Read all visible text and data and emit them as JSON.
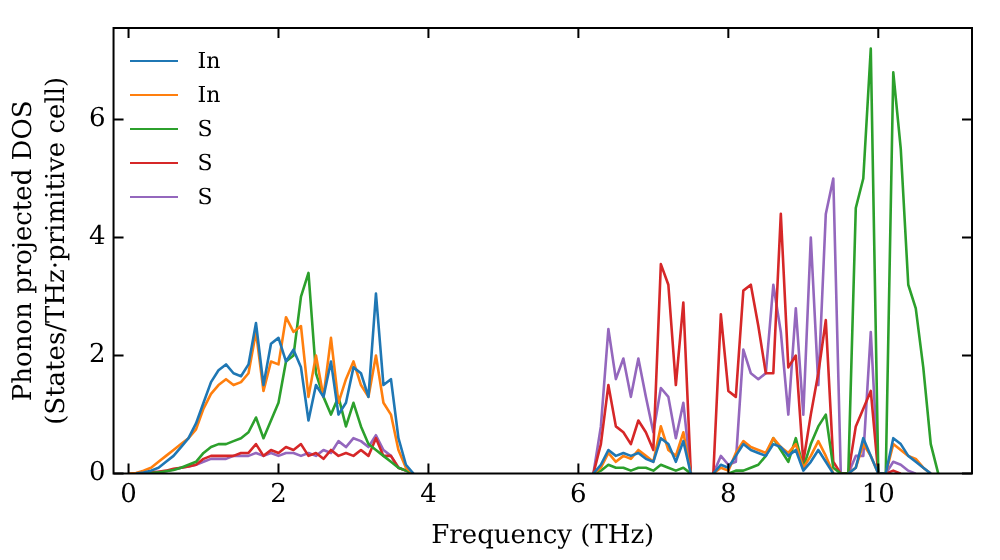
{
  "chart_data": {
    "type": "line",
    "xlabel": "Frequency (THz)",
    "ylabel": "Phonon projected DOS\n(States/THz·primitive cell)",
    "x": [
      0,
      0.1,
      0.2,
      0.3,
      0.4,
      0.5,
      0.6,
      0.7,
      0.8,
      0.9,
      1,
      1.1,
      1.2,
      1.3,
      1.4,
      1.5,
      1.6,
      1.7,
      1.8,
      1.9,
      2,
      2.1,
      2.2,
      2.3,
      2.4,
      2.5,
      2.6,
      2.7,
      2.8,
      2.9,
      3,
      3.1,
      3.2,
      3.3,
      3.4,
      3.5,
      3.6,
      3.7,
      3.8,
      3.9,
      4,
      4.1,
      4.2,
      4.3,
      4.4,
      4.5,
      4.6,
      4.7,
      4.8,
      4.9,
      5,
      5.1,
      5.2,
      5.3,
      5.4,
      5.5,
      5.6,
      5.7,
      5.8,
      5.9,
      6,
      6.1,
      6.2,
      6.3,
      6.4,
      6.5,
      6.6,
      6.7,
      6.8,
      6.9,
      7,
      7.1,
      7.2,
      7.3,
      7.4,
      7.5,
      7.6,
      7.7,
      7.8,
      7.9,
      8,
      8.1,
      8.2,
      8.3,
      8.4,
      8.5,
      8.6,
      8.7,
      8.8,
      8.9,
      9,
      9.1,
      9.2,
      9.3,
      9.4,
      9.5,
      9.6,
      9.7,
      9.8,
      9.9,
      10,
      10.1,
      10.2,
      10.3,
      10.4,
      10.5,
      10.6,
      10.7,
      10.8
    ],
    "series": [
      {
        "name": "In",
        "color": "#1f77b4",
        "values": [
          null,
          0,
          0.02,
          0.05,
          0.1,
          0.2,
          0.3,
          0.45,
          0.6,
          0.85,
          1.2,
          1.55,
          1.75,
          1.85,
          1.7,
          1.65,
          1.85,
          2.55,
          1.5,
          2.2,
          2.3,
          1.9,
          2.1,
          1.8,
          0.9,
          1.5,
          1.3,
          1.9,
          1.0,
          1.2,
          1.8,
          1.7,
          1.3,
          3.05,
          1.5,
          1.6,
          0.6,
          0.15,
          0,
          null,
          null,
          null,
          null,
          null,
          null,
          null,
          null,
          null,
          null,
          null,
          null,
          null,
          null,
          null,
          null,
          null,
          null,
          null,
          null,
          null,
          null,
          null,
          0,
          0.15,
          0.4,
          0.3,
          0.35,
          0.3,
          0.35,
          0.25,
          0.2,
          0.6,
          0.5,
          0.2,
          0.55,
          0,
          null,
          null,
          0,
          0.15,
          0.1,
          0.3,
          0.5,
          0.4,
          0.35,
          0.3,
          0.5,
          0.45,
          0.3,
          0.4,
          0.05,
          0.2,
          0.4,
          0.2,
          0,
          null,
          0,
          0.1,
          0.6,
          0.3,
          0,
          0,
          0.6,
          0.5,
          0.3,
          0.2,
          0.1,
          0,
          null
        ]
      },
      {
        "name": "In",
        "color": "#ff7f0e",
        "values": [
          0,
          0.01,
          0.05,
          0.1,
          0.2,
          0.3,
          0.4,
          0.5,
          0.6,
          0.75,
          1.1,
          1.35,
          1.5,
          1.6,
          1.5,
          1.55,
          1.7,
          2.4,
          1.4,
          1.9,
          1.85,
          2.65,
          2.4,
          2.5,
          1.3,
          2.0,
          1.3,
          2.3,
          1.2,
          1.6,
          1.9,
          1.5,
          1.3,
          2.0,
          1.2,
          1.0,
          0.4,
          0.1,
          0,
          null,
          null,
          null,
          null,
          null,
          null,
          null,
          null,
          null,
          null,
          null,
          null,
          null,
          null,
          null,
          null,
          null,
          null,
          null,
          null,
          null,
          null,
          null,
          0,
          0.1,
          0.35,
          0.2,
          0.3,
          0.25,
          0.4,
          0.3,
          0.2,
          0.8,
          0.4,
          0.3,
          0.7,
          0,
          null,
          null,
          0,
          0.1,
          0.05,
          0.35,
          0.55,
          0.45,
          0.4,
          0.35,
          0.6,
          0.45,
          0.35,
          0.5,
          0.1,
          0.3,
          0.55,
          0.3,
          0,
          null,
          0,
          0.1,
          0.5,
          0.3,
          0,
          0,
          0.5,
          0.4,
          0.3,
          0.25,
          0.1,
          0,
          null
        ]
      },
      {
        "name": "S",
        "color": "#2ca02c",
        "values": [
          null,
          null,
          0,
          0.01,
          0.02,
          0.04,
          0.06,
          0.1,
          0.15,
          0.2,
          0.35,
          0.45,
          0.5,
          0.5,
          0.55,
          0.6,
          0.7,
          0.95,
          0.6,
          0.9,
          1.2,
          1.9,
          2.0,
          3.0,
          3.4,
          1.7,
          1.3,
          1.0,
          1.3,
          0.8,
          1.2,
          0.8,
          0.5,
          0.4,
          0.3,
          0.2,
          0.1,
          0.05,
          0,
          null,
          null,
          null,
          null,
          null,
          null,
          null,
          null,
          null,
          null,
          null,
          null,
          null,
          null,
          null,
          null,
          null,
          null,
          null,
          null,
          null,
          null,
          null,
          0,
          0.05,
          0.15,
          0.1,
          0.1,
          0.05,
          0.1,
          0.1,
          0.05,
          0.15,
          0.1,
          0.05,
          0.1,
          0,
          null,
          null,
          null,
          null,
          0,
          0.05,
          0.05,
          0.1,
          0.15,
          0.3,
          0.6,
          0.4,
          0.2,
          0.6,
          0.1,
          0.5,
          0.8,
          1.0,
          0.1,
          0,
          0,
          4.5,
          5.0,
          7.2,
          0,
          0,
          6.8,
          5.5,
          3.2,
          2.8,
          1.8,
          0.5,
          0
        ]
      },
      {
        "name": "S",
        "color": "#d62728",
        "values": [
          null,
          0,
          0.01,
          0.02,
          0.03,
          0.05,
          0.08,
          0.1,
          0.12,
          0.15,
          0.25,
          0.3,
          0.3,
          0.3,
          0.3,
          0.35,
          0.35,
          0.5,
          0.3,
          0.4,
          0.35,
          0.45,
          0.4,
          0.5,
          0.3,
          0.35,
          0.25,
          0.4,
          0.3,
          0.35,
          0.3,
          0.4,
          0.3,
          0.6,
          0.3,
          0.3,
          0.1,
          0.05,
          0,
          null,
          null,
          null,
          null,
          null,
          null,
          null,
          null,
          null,
          null,
          null,
          null,
          null,
          null,
          null,
          null,
          null,
          null,
          null,
          null,
          null,
          null,
          null,
          0,
          0.5,
          1.5,
          0.8,
          0.7,
          0.5,
          0.9,
          0.7,
          0.4,
          3.55,
          3.2,
          1.5,
          2.9,
          0,
          null,
          null,
          0,
          2.7,
          1.4,
          1.3,
          3.1,
          3.2,
          2.5,
          1.7,
          1.7,
          4.4,
          1.8,
          2.0,
          0.2,
          1.0,
          1.7,
          2.6,
          0.2,
          0,
          0,
          0.8,
          1.1,
          1.4,
          0,
          0,
          0.05,
          0,
          null,
          null,
          null,
          null,
          null
        ]
      },
      {
        "name": "S",
        "color": "#9467bd",
        "values": [
          null,
          0,
          0.01,
          0.02,
          0.03,
          0.04,
          0.07,
          0.1,
          0.12,
          0.15,
          0.2,
          0.25,
          0.25,
          0.25,
          0.3,
          0.3,
          0.3,
          0.35,
          0.3,
          0.35,
          0.3,
          0.35,
          0.35,
          0.3,
          0.35,
          0.3,
          0.4,
          0.35,
          0.55,
          0.45,
          0.6,
          0.55,
          0.45,
          0.65,
          0.4,
          0.3,
          0.1,
          0.05,
          0,
          null,
          null,
          null,
          null,
          null,
          null,
          null,
          null,
          null,
          null,
          null,
          null,
          null,
          null,
          null,
          null,
          null,
          null,
          null,
          null,
          null,
          null,
          null,
          0,
          0.8,
          2.45,
          1.6,
          1.95,
          1.3,
          1.95,
          1.3,
          0.7,
          1.45,
          1.3,
          0.6,
          1.2,
          0,
          null,
          null,
          0,
          0.3,
          0.15,
          0.2,
          2.1,
          1.7,
          1.6,
          1.7,
          3.2,
          2.4,
          1.0,
          2.8,
          1.0,
          4.0,
          1.5,
          4.4,
          5.0,
          0,
          0,
          0.3,
          0.3,
          2.4,
          0,
          0,
          0.2,
          0.15,
          0.05,
          0,
          null,
          null,
          null
        ]
      }
    ],
    "xlim": [
      -0.2,
      11.25
    ],
    "xticks": [
      0,
      2,
      4,
      6,
      8,
      10
    ],
    "ylim": [
      0,
      7.55
    ],
    "yticks": [
      0,
      2,
      4,
      6
    ],
    "grid": false,
    "legend": "top left",
    "marker": "none",
    "line_style": "solid"
  }
}
